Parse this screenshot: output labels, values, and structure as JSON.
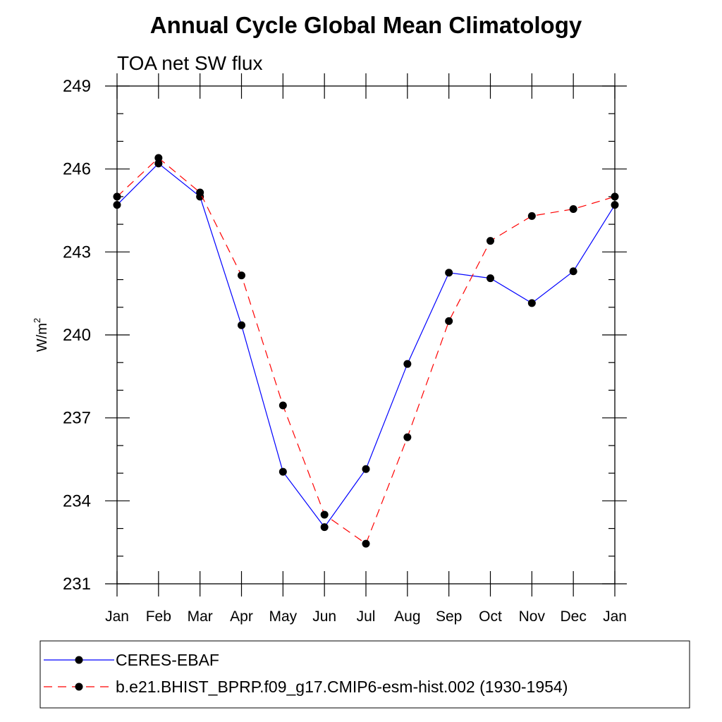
{
  "chart_data": {
    "type": "line",
    "title": "Annual Cycle Global Mean Climatology",
    "subtitle": "TOA net SW flux",
    "ylabel": "W/m",
    "ylabel_sup": "2",
    "ylim": [
      231,
      249
    ],
    "yticks": [
      "231",
      "234",
      "237",
      "240",
      "243",
      "246",
      "249"
    ],
    "categories": [
      "Jan",
      "Feb",
      "Mar",
      "Apr",
      "May",
      "Jun",
      "Jul",
      "Aug",
      "Sep",
      "Oct",
      "Nov",
      "Dec",
      "Jan"
    ],
    "grid": false,
    "legend_position": "bottom",
    "series": [
      {
        "name": "CERES-EBAF",
        "color": "#0000ff",
        "dash": "solid",
        "values": [
          244.7,
          246.2,
          245.0,
          240.35,
          235.05,
          233.05,
          235.15,
          238.95,
          242.25,
          242.05,
          241.15,
          242.3,
          244.7
        ]
      },
      {
        "name": "b.e21.BHIST_BPRP.f09_g17.CMIP6-esm-hist.002 (1930-1954)",
        "color": "#ff0000",
        "dash": "dashed",
        "values": [
          245.0,
          246.4,
          245.15,
          242.15,
          237.45,
          233.5,
          232.45,
          236.3,
          240.5,
          243.4,
          244.3,
          244.55,
          245.0
        ]
      }
    ]
  }
}
